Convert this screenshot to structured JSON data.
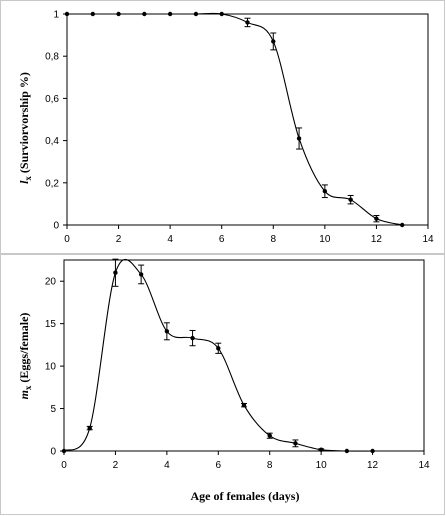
{
  "chart_data": [
    {
      "type": "line",
      "panel": "top",
      "title": "",
      "ylabel_symbol": "l",
      "ylabel_subscript": "x",
      "ylabel_rest": " (Surviorvorship %)",
      "xlabel": "",
      "xlim": [
        0,
        14
      ],
      "ylim": [
        0,
        1
      ],
      "xticks": [
        0,
        2,
        4,
        6,
        8,
        10,
        12,
        14
      ],
      "yticks": [
        0,
        0.2,
        0.4,
        0.6,
        0.8,
        1
      ],
      "ytick_labels": [
        "0",
        "0,2",
        "0,4",
        "0,6",
        "0,8",
        "1"
      ],
      "grid": false,
      "series": [
        {
          "x": [
            0,
            1,
            2,
            3,
            4,
            5,
            6,
            7,
            8,
            9,
            10,
            11,
            12,
            13
          ],
          "y": [
            1.0,
            1.0,
            1.0,
            1.0,
            1.0,
            1.0,
            1.0,
            0.96,
            0.87,
            0.41,
            0.16,
            0.12,
            0.03,
            0.0
          ],
          "error": [
            0,
            0,
            0,
            0,
            0,
            0,
            0,
            0.02,
            0.04,
            0.05,
            0.03,
            0.02,
            0.015,
            0
          ]
        }
      ]
    },
    {
      "type": "line",
      "panel": "bottom",
      "title": "",
      "ylabel_symbol": "m",
      "ylabel_subscript": "x",
      "ylabel_rest": " (Eggs/female)",
      "xlabel": "Age of females (days)",
      "xlim": [
        0,
        14
      ],
      "ylim": [
        0,
        22.5
      ],
      "xticks": [
        0,
        2,
        4,
        6,
        8,
        10,
        12,
        14
      ],
      "yticks": [
        0,
        5,
        10,
        15,
        20
      ],
      "ytick_labels": [
        "0",
        "5",
        "10",
        "15",
        "20"
      ],
      "grid": false,
      "series": [
        {
          "x": [
            0,
            1,
            2,
            3,
            4,
            5,
            6,
            7,
            8,
            9,
            10,
            11,
            12
          ],
          "y": [
            0.0,
            2.7,
            21.0,
            20.8,
            14.1,
            13.3,
            12.1,
            5.4,
            1.8,
            0.9,
            0.15,
            0.0,
            0.0
          ],
          "error": [
            0,
            0.2,
            1.6,
            1.1,
            1.0,
            0.9,
            0.6,
            0.2,
            0.3,
            0.4,
            0.1,
            0,
            0
          ]
        }
      ]
    }
  ]
}
